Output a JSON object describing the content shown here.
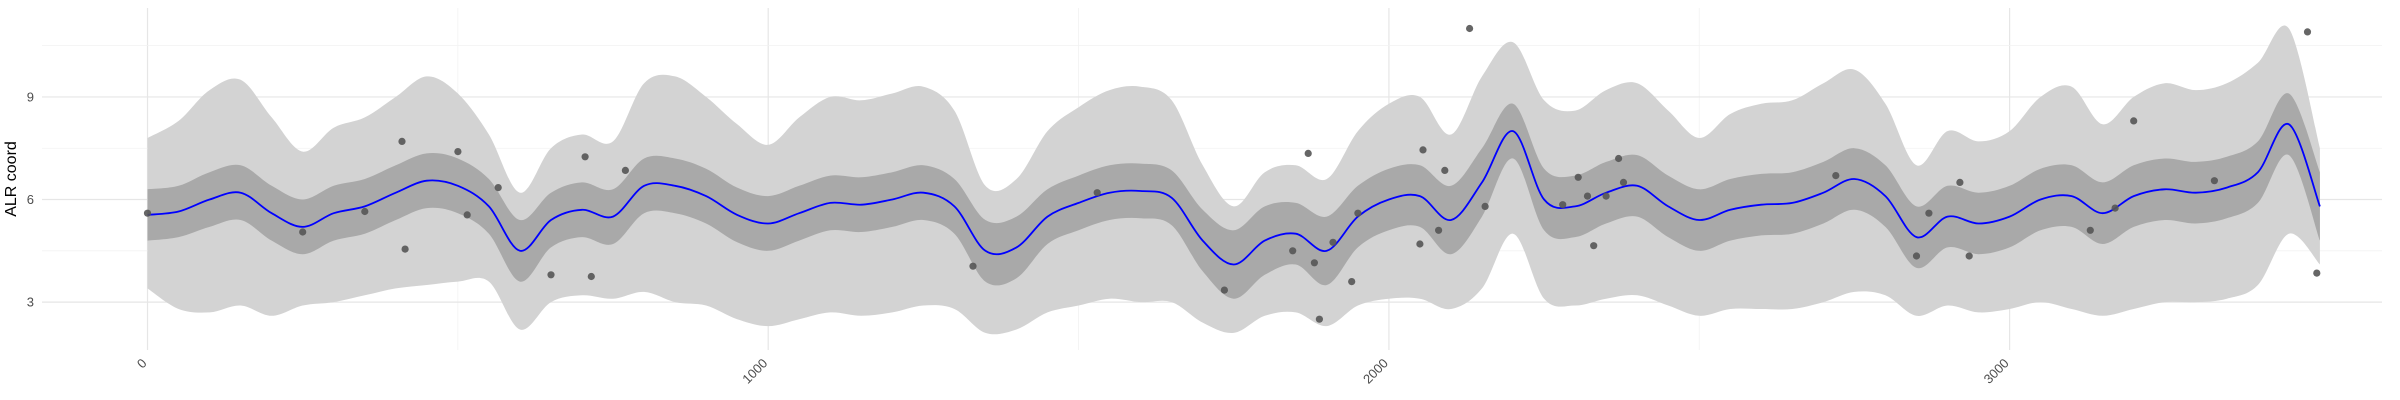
{
  "chart_data": {
    "type": "line",
    "title": "",
    "xlabel": "",
    "ylabel": "ALR coord",
    "xlim": [
      -170,
      3600
    ],
    "ylim": [
      1.6,
      11.6
    ],
    "x_ticks": [
      0,
      1000,
      2000,
      3000
    ],
    "x_tick_labels": [
      "0",
      "1000",
      "2000",
      "3000"
    ],
    "y_ticks": [
      3,
      6,
      9
    ],
    "y_tick_labels": [
      "3",
      "6",
      "9"
    ],
    "grid": true,
    "colors": {
      "mean_line": "#0000ff",
      "inner_band": "#a9a9a9",
      "outer_band": "#d3d3d3",
      "points": "#555555"
    },
    "series": [
      {
        "role": "mean",
        "x": [
          0,
          50,
          100,
          150,
          200,
          250,
          300,
          350,
          400,
          450,
          500,
          550,
          600,
          650,
          700,
          750,
          800,
          850,
          900,
          950,
          1000,
          1050,
          1100,
          1150,
          1200,
          1250,
          1300,
          1350,
          1400,
          1450,
          1500,
          1550,
          1600,
          1650,
          1700,
          1750,
          1800,
          1850,
          1900,
          1950,
          2000,
          2050,
          2100,
          2150,
          2200,
          2250,
          2300,
          2350,
          2400,
          2450,
          2500,
          2550,
          2600,
          2650,
          2700,
          2750,
          2800,
          2850,
          2900,
          2950,
          3000,
          3050,
          3100,
          3150,
          3200,
          3250,
          3300,
          3350,
          3400,
          3450,
          3500
        ],
        "y": [
          5.55,
          5.65,
          6.0,
          6.2,
          5.6,
          5.2,
          5.6,
          5.8,
          6.2,
          6.55,
          6.4,
          5.8,
          4.5,
          5.4,
          5.7,
          5.5,
          6.4,
          6.4,
          6.1,
          5.55,
          5.3,
          5.6,
          5.9,
          5.85,
          6.0,
          6.2,
          5.8,
          4.5,
          4.6,
          5.5,
          5.9,
          6.2,
          6.25,
          6.05,
          4.8,
          4.1,
          4.8,
          5.0,
          4.5,
          5.5,
          6.0,
          6.1,
          5.4,
          6.5,
          8.0,
          6.0,
          5.8,
          6.2,
          6.4,
          5.8,
          5.4,
          5.7,
          5.85,
          5.9,
          6.2,
          6.6,
          6.1,
          4.9,
          5.5,
          5.3,
          5.5,
          6.0,
          6.1,
          5.6,
          6.1,
          6.3,
          6.2,
          6.35,
          6.8,
          8.2,
          5.8
        ]
      },
      {
        "role": "inner_band_upper",
        "x": [
          0,
          50,
          100,
          150,
          200,
          250,
          300,
          350,
          400,
          450,
          500,
          550,
          600,
          650,
          700,
          750,
          800,
          850,
          900,
          950,
          1000,
          1050,
          1100,
          1150,
          1200,
          1250,
          1300,
          1350,
          1400,
          1450,
          1500,
          1550,
          1600,
          1650,
          1700,
          1750,
          1800,
          1850,
          1900,
          1950,
          2000,
          2050,
          2100,
          2150,
          2200,
          2250,
          2300,
          2350,
          2400,
          2450,
          2500,
          2550,
          2600,
          2650,
          2700,
          2750,
          2800,
          2850,
          2900,
          2950,
          3000,
          3050,
          3100,
          3150,
          3200,
          3250,
          3300,
          3350,
          3400,
          3450,
          3500
        ],
        "y": [
          6.3,
          6.4,
          6.8,
          7.0,
          6.4,
          6.0,
          6.4,
          6.6,
          7.0,
          7.35,
          7.2,
          6.6,
          5.4,
          6.2,
          6.5,
          6.3,
          7.2,
          7.2,
          6.9,
          6.35,
          6.1,
          6.4,
          6.7,
          6.65,
          6.8,
          7.0,
          6.6,
          5.4,
          5.5,
          6.3,
          6.7,
          7.0,
          7.05,
          6.85,
          5.7,
          5.1,
          5.8,
          5.9,
          5.5,
          6.4,
          6.9,
          7.0,
          6.4,
          7.5,
          8.8,
          6.9,
          6.7,
          7.1,
          7.3,
          6.7,
          6.3,
          6.6,
          6.75,
          6.8,
          7.1,
          7.5,
          7.0,
          5.8,
          6.4,
          6.2,
          6.4,
          6.9,
          7.0,
          6.5,
          7.0,
          7.2,
          7.1,
          7.25,
          7.7,
          9.1,
          6.8
        ]
      },
      {
        "role": "inner_band_lower",
        "x": [
          0,
          50,
          100,
          150,
          200,
          250,
          300,
          350,
          400,
          450,
          500,
          550,
          600,
          650,
          700,
          750,
          800,
          850,
          900,
          950,
          1000,
          1050,
          1100,
          1150,
          1200,
          1250,
          1300,
          1350,
          1400,
          1450,
          1500,
          1550,
          1600,
          1650,
          1700,
          1750,
          1800,
          1850,
          1900,
          1950,
          2000,
          2050,
          2100,
          2150,
          2200,
          2250,
          2300,
          2350,
          2400,
          2450,
          2500,
          2550,
          2600,
          2650,
          2700,
          2750,
          2800,
          2850,
          2900,
          2950,
          3000,
          3050,
          3100,
          3150,
          3200,
          3250,
          3300,
          3350,
          3400,
          3450,
          3500
        ],
        "y": [
          4.8,
          4.9,
          5.2,
          5.4,
          4.8,
          4.4,
          4.8,
          5.0,
          5.4,
          5.75,
          5.6,
          5.0,
          3.6,
          4.6,
          4.9,
          4.7,
          5.6,
          5.6,
          5.3,
          4.75,
          4.5,
          4.8,
          5.1,
          5.05,
          5.2,
          5.4,
          5.0,
          3.6,
          3.7,
          4.7,
          5.1,
          5.4,
          5.45,
          5.25,
          3.9,
          3.1,
          3.8,
          4.1,
          3.5,
          4.6,
          5.1,
          5.2,
          4.4,
          5.5,
          7.2,
          5.1,
          4.9,
          5.3,
          5.5,
          4.9,
          4.5,
          4.8,
          4.95,
          5.0,
          5.3,
          5.7,
          5.2,
          4.0,
          4.6,
          4.4,
          4.6,
          5.1,
          5.2,
          4.7,
          5.2,
          5.4,
          5.3,
          5.45,
          5.9,
          7.3,
          4.8
        ]
      },
      {
        "role": "outer_band_upper",
        "x": [
          0,
          50,
          100,
          150,
          200,
          250,
          300,
          350,
          400,
          450,
          500,
          550,
          600,
          650,
          700,
          750,
          800,
          850,
          900,
          950,
          1000,
          1050,
          1100,
          1150,
          1200,
          1250,
          1300,
          1350,
          1400,
          1450,
          1500,
          1550,
          1600,
          1650,
          1700,
          1750,
          1800,
          1850,
          1900,
          1950,
          2000,
          2050,
          2100,
          2150,
          2200,
          2250,
          2300,
          2350,
          2400,
          2450,
          2500,
          2550,
          2600,
          2650,
          2700,
          2750,
          2800,
          2850,
          2900,
          2950,
          3000,
          3050,
          3100,
          3150,
          3200,
          3250,
          3300,
          3350,
          3400,
          3450,
          3500
        ],
        "y": [
          7.8,
          8.3,
          9.2,
          9.5,
          8.4,
          7.4,
          8.1,
          8.4,
          9.0,
          9.6,
          9.1,
          7.9,
          6.2,
          7.5,
          7.9,
          7.7,
          9.4,
          9.6,
          9.0,
          8.2,
          7.6,
          8.4,
          9.0,
          8.9,
          9.1,
          9.3,
          8.6,
          6.4,
          6.6,
          8.0,
          8.7,
          9.2,
          9.3,
          8.9,
          7.0,
          5.8,
          6.8,
          7.0,
          6.6,
          8.0,
          8.8,
          9.0,
          7.9,
          9.6,
          10.6,
          8.9,
          8.6,
          9.2,
          9.4,
          8.6,
          7.8,
          8.5,
          8.8,
          8.9,
          9.4,
          9.8,
          8.8,
          7.0,
          8.0,
          7.7,
          8.0,
          9.0,
          9.3,
          8.2,
          9.0,
          9.4,
          9.2,
          9.4,
          10.0,
          11.0,
          7.5
        ]
      },
      {
        "role": "outer_band_lower",
        "x": [
          0,
          50,
          100,
          150,
          200,
          250,
          300,
          350,
          400,
          450,
          500,
          550,
          600,
          650,
          700,
          750,
          800,
          850,
          900,
          950,
          1000,
          1050,
          1100,
          1150,
          1200,
          1250,
          1300,
          1350,
          1400,
          1450,
          1500,
          1550,
          1600,
          1650,
          1700,
          1750,
          1800,
          1850,
          1900,
          1950,
          2000,
          2050,
          2100,
          2150,
          2200,
          2250,
          2300,
          2350,
          2400,
          2450,
          2500,
          2550,
          2600,
          2650,
          2700,
          2750,
          2800,
          2850,
          2900,
          2950,
          3000,
          3050,
          3100,
          3150,
          3200,
          3250,
          3300,
          3350,
          3400,
          3450,
          3500
        ],
        "y": [
          3.4,
          2.8,
          2.7,
          2.9,
          2.6,
          2.9,
          3.0,
          3.2,
          3.4,
          3.5,
          3.6,
          3.6,
          2.2,
          3.0,
          3.2,
          3.1,
          3.3,
          3.0,
          2.9,
          2.5,
          2.3,
          2.5,
          2.7,
          2.6,
          2.7,
          2.9,
          2.8,
          2.1,
          2.2,
          2.7,
          2.9,
          3.1,
          3.0,
          3.0,
          2.4,
          2.1,
          2.6,
          2.7,
          2.3,
          2.9,
          3.1,
          3.1,
          2.8,
          3.4,
          5.0,
          3.1,
          2.9,
          3.1,
          3.2,
          2.9,
          2.6,
          2.8,
          2.8,
          2.8,
          3.0,
          3.3,
          3.2,
          2.6,
          2.9,
          2.7,
          2.8,
          3.0,
          2.8,
          2.6,
          2.8,
          3.0,
          3.0,
          3.1,
          3.5,
          5.0,
          4.1
        ]
      }
    ],
    "points": {
      "x": [
        0,
        250,
        350,
        410,
        415,
        500,
        515,
        565,
        650,
        705,
        715,
        770,
        1330,
        1530,
        1735,
        1845,
        1870,
        1880,
        1888,
        1910,
        1940,
        1950,
        2050,
        2055,
        2080,
        2090,
        2130,
        2155,
        2280,
        2305,
        2320,
        2330,
        2350,
        2370,
        2378,
        2720,
        2850,
        2870,
        2920,
        2935,
        3130,
        3170,
        3200,
        3330,
        3480,
        3495
      ],
      "y": [
        5.6,
        5.05,
        5.65,
        7.7,
        4.55,
        7.4,
        5.55,
        6.35,
        3.8,
        7.25,
        3.75,
        6.85,
        4.05,
        6.2,
        3.35,
        4.5,
        7.35,
        4.15,
        2.5,
        4.75,
        3.6,
        5.6,
        4.7,
        7.45,
        5.1,
        6.85,
        11.0,
        5.8,
        5.85,
        6.65,
        6.1,
        4.65,
        6.1,
        7.2,
        6.5,
        6.7,
        4.35,
        5.6,
        6.5,
        4.35,
        5.1,
        5.75,
        8.3,
        6.55,
        10.9,
        3.85
      ]
    }
  }
}
